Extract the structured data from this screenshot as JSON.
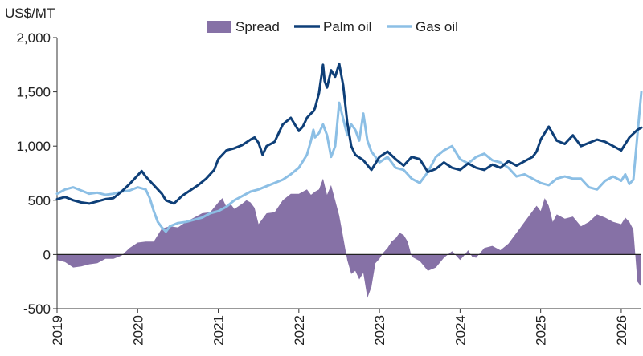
{
  "chart_data": {
    "type": "line",
    "title": "",
    "ylabel": "US$/MT",
    "xlabel": "",
    "ylim": [
      -500,
      2000
    ],
    "xlim": [
      2019.0,
      2026.25
    ],
    "yticks": [
      -500,
      0,
      500,
      1000,
      1500,
      2000
    ],
    "ytick_labels": [
      "-500",
      "0",
      "500",
      "1,000",
      "1,500",
      "2,000"
    ],
    "xticks": [
      2019,
      2020,
      2021,
      2022,
      2023,
      2024,
      2025,
      2026
    ],
    "xtick_labels": [
      "2019",
      "2020",
      "2021",
      "2022",
      "2023",
      "2024",
      "2025",
      "2026"
    ],
    "grid": false,
    "legend": {
      "position": "top-center",
      "entries": [
        "Spread",
        "Palm oil",
        "Gas oil"
      ]
    },
    "series": [
      {
        "name": "Palm oil",
        "kind": "line",
        "color": "#0e3f78",
        "x": [
          2019.0,
          2019.1,
          2019.2,
          2019.3,
          2019.4,
          2019.5,
          2019.6,
          2019.7,
          2019.8,
          2019.9,
          2020.0,
          2020.05,
          2020.1,
          2020.2,
          2020.3,
          2020.35,
          2020.45,
          2020.55,
          2020.65,
          2020.75,
          2020.85,
          2020.95,
          2021.0,
          2021.1,
          2021.2,
          2021.3,
          2021.4,
          2021.45,
          2021.5,
          2021.55,
          2021.6,
          2021.7,
          2021.8,
          2021.9,
          2022.0,
          2022.05,
          2022.1,
          2022.15,
          2022.18,
          2022.2,
          2022.25,
          2022.3,
          2022.32,
          2022.35,
          2022.4,
          2022.45,
          2022.5,
          2022.55,
          2022.6,
          2022.65,
          2022.7,
          2022.8,
          2022.9,
          2023.0,
          2023.1,
          2023.2,
          2023.3,
          2023.4,
          2023.5,
          2023.6,
          2023.7,
          2023.8,
          2023.9,
          2024.0,
          2024.1,
          2024.2,
          2024.3,
          2024.4,
          2024.5,
          2024.6,
          2024.7,
          2024.8,
          2024.9,
          2024.95,
          2025.0,
          2025.1,
          2025.2,
          2025.3,
          2025.4,
          2025.5,
          2025.6,
          2025.7,
          2025.8,
          2025.9,
          2026.0,
          2026.1,
          2026.2,
          2026.25
        ],
        "values": [
          510,
          530,
          500,
          480,
          470,
          490,
          510,
          520,
          580,
          650,
          730,
          770,
          720,
          640,
          560,
          500,
          470,
          540,
          590,
          640,
          700,
          780,
          880,
          960,
          980,
          1010,
          1060,
          1080,
          1030,
          920,
          1000,
          1040,
          1200,
          1260,
          1140,
          1180,
          1260,
          1300,
          1320,
          1350,
          1490,
          1750,
          1600,
          1540,
          1700,
          1640,
          1760,
          1560,
          1220,
          1000,
          920,
          870,
          780,
          900,
          950,
          880,
          820,
          900,
          880,
          760,
          790,
          850,
          800,
          780,
          840,
          800,
          780,
          830,
          800,
          860,
          820,
          860,
          900,
          950,
          1060,
          1180,
          1050,
          1020,
          1100,
          1000,
          1030,
          1060,
          1040,
          1000,
          960,
          1080,
          1150,
          1170
        ]
      },
      {
        "name": "Gas oil",
        "kind": "line",
        "color": "#8cbfe5",
        "x": [
          2019.0,
          2019.1,
          2019.2,
          2019.3,
          2019.4,
          2019.5,
          2019.6,
          2019.7,
          2019.8,
          2019.9,
          2020.0,
          2020.1,
          2020.15,
          2020.2,
          2020.25,
          2020.3,
          2020.35,
          2020.4,
          2020.5,
          2020.6,
          2020.7,
          2020.8,
          2020.9,
          2021.0,
          2021.1,
          2021.2,
          2021.3,
          2021.4,
          2021.5,
          2021.6,
          2021.7,
          2021.8,
          2021.9,
          2022.0,
          2022.1,
          2022.15,
          2022.18,
          2022.2,
          2022.25,
          2022.3,
          2022.35,
          2022.4,
          2022.45,
          2022.5,
          2022.55,
          2022.6,
          2022.65,
          2022.7,
          2022.75,
          2022.8,
          2022.85,
          2022.9,
          2023.0,
          2023.1,
          2023.2,
          2023.3,
          2023.4,
          2023.5,
          2023.6,
          2023.7,
          2023.8,
          2023.9,
          2024.0,
          2024.1,
          2024.2,
          2024.3,
          2024.4,
          2024.5,
          2024.6,
          2024.7,
          2024.8,
          2024.9,
          2025.0,
          2025.1,
          2025.2,
          2025.3,
          2025.4,
          2025.5,
          2025.6,
          2025.7,
          2025.8,
          2025.9,
          2026.0,
          2026.05,
          2026.1,
          2026.15,
          2026.2,
          2026.25
        ],
        "values": [
          560,
          600,
          620,
          590,
          560,
          570,
          550,
          560,
          580,
          590,
          620,
          600,
          520,
          400,
          300,
          250,
          210,
          260,
          290,
          300,
          320,
          340,
          380,
          400,
          440,
          500,
          540,
          580,
          600,
          630,
          660,
          690,
          740,
          800,
          920,
          1050,
          1150,
          1080,
          1120,
          1200,
          1100,
          900,
          1000,
          1400,
          1250,
          1100,
          1200,
          1150,
          1050,
          1300,
          1050,
          950,
          850,
          900,
          800,
          780,
          700,
          660,
          760,
          900,
          960,
          1000,
          880,
          840,
          900,
          930,
          870,
          850,
          800,
          720,
          740,
          700,
          660,
          640,
          700,
          720,
          700,
          700,
          620,
          600,
          680,
          720,
          680,
          740,
          650,
          690,
          1100,
          1500
        ]
      },
      {
        "name": "Spread",
        "kind": "area",
        "color": "#8671a6",
        "x": [
          2019.0,
          2019.1,
          2019.2,
          2019.3,
          2019.4,
          2019.5,
          2019.6,
          2019.7,
          2019.8,
          2019.9,
          2020.0,
          2020.1,
          2020.2,
          2020.3,
          2020.4,
          2020.5,
          2020.6,
          2020.7,
          2020.8,
          2020.9,
          2021.0,
          2021.05,
          2021.1,
          2021.15,
          2021.2,
          2021.3,
          2021.35,
          2021.4,
          2021.45,
          2021.5,
          2021.6,
          2021.7,
          2021.8,
          2021.9,
          2022.0,
          2022.1,
          2022.15,
          2022.2,
          2022.25,
          2022.3,
          2022.35,
          2022.4,
          2022.45,
          2022.5,
          2022.55,
          2022.6,
          2022.65,
          2022.7,
          2022.75,
          2022.8,
          2022.85,
          2022.9,
          2022.95,
          2023.0,
          2023.05,
          2023.1,
          2023.15,
          2023.2,
          2023.25,
          2023.3,
          2023.35,
          2023.4,
          2023.5,
          2023.6,
          2023.7,
          2023.8,
          2023.9,
          2024.0,
          2024.05,
          2024.1,
          2024.15,
          2024.2,
          2024.3,
          2024.4,
          2024.5,
          2024.6,
          2024.7,
          2024.8,
          2024.9,
          2024.95,
          2025.0,
          2025.05,
          2025.1,
          2025.15,
          2025.2,
          2025.3,
          2025.4,
          2025.5,
          2025.6,
          2025.7,
          2025.8,
          2025.9,
          2026.0,
          2026.05,
          2026.1,
          2026.15,
          2026.2,
          2026.25
        ],
        "values": [
          -50,
          -70,
          -120,
          -110,
          -90,
          -80,
          -40,
          -40,
          -10,
          60,
          110,
          120,
          120,
          240,
          260,
          250,
          300,
          340,
          380,
          390,
          480,
          520,
          440,
          470,
          420,
          470,
          500,
          480,
          430,
          280,
          380,
          390,
          500,
          560,
          560,
          600,
          550,
          580,
          600,
          700,
          550,
          640,
          500,
          360,
          160,
          -50,
          -180,
          -150,
          -230,
          -170,
          -400,
          -300,
          -80,
          -40,
          20,
          60,
          120,
          150,
          200,
          180,
          120,
          -20,
          -60,
          -150,
          -120,
          -30,
          30,
          -50,
          -10,
          40,
          -20,
          -30,
          60,
          80,
          40,
          100,
          200,
          300,
          400,
          450,
          400,
          520,
          450,
          300,
          370,
          330,
          350,
          260,
          300,
          370,
          340,
          300,
          280,
          340,
          300,
          230,
          -250,
          -300
        ]
      }
    ]
  }
}
